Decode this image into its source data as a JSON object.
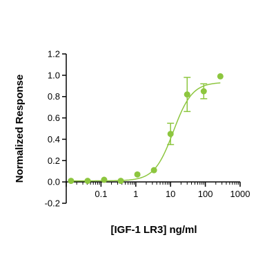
{
  "chart_data": {
    "type": "scatter",
    "title": "",
    "xlabel": "[IGF-1 LR3] ng/ml",
    "ylabel": "Normalized Response",
    "x_scale": "log",
    "xlim": [
      0.01,
      1000
    ],
    "ylim": [
      -0.2,
      1.2
    ],
    "x_ticks": [
      0.1,
      1,
      10,
      100,
      1000
    ],
    "x_tick_labels": [
      "0.1",
      "1",
      "10",
      "100",
      "1000"
    ],
    "y_ticks": [
      -0.2,
      0.0,
      0.2,
      0.4,
      0.6,
      0.8,
      1.0,
      1.2
    ],
    "y_tick_labels": [
      "-0.2",
      "0.0",
      "0.2",
      "0.4",
      "0.6",
      "0.8",
      "1.0",
      "1.2"
    ],
    "grid": false,
    "legend": "none",
    "color": "#8dc63f",
    "series": [
      {
        "points": [
          {
            "x": 0.0137,
            "y": 0.01
          },
          {
            "x": 0.0412,
            "y": 0.01
          },
          {
            "x": 0.123,
            "y": 0.02
          },
          {
            "x": 0.37,
            "y": 0.01
          },
          {
            "x": 1.11,
            "y": 0.07
          },
          {
            "x": 3.33,
            "y": 0.11
          },
          {
            "x": 10,
            "y": 0.45,
            "err": 0.1
          },
          {
            "x": 30,
            "y": 0.82,
            "err": 0.16
          },
          {
            "x": 90,
            "y": 0.85,
            "err": 0.07
          },
          {
            "x": 270,
            "y": 0.99
          }
        ],
        "fit": {
          "model": "4PL",
          "bottom": 0.01,
          "top": 0.935,
          "ec50": 12,
          "hill": 1.6
        }
      }
    ]
  }
}
